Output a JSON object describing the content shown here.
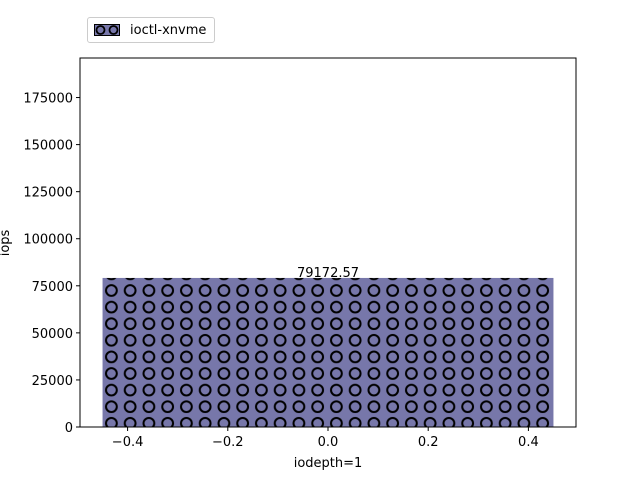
{
  "chart_data": {
    "type": "bar",
    "x": [
      0.0
    ],
    "values": [
      79172.57
    ],
    "value_labels": [
      "79172.57"
    ],
    "bar_width": 0.9,
    "series": [
      {
        "name": "ioctl-xnvme",
        "values": [
          79172.57
        ]
      }
    ],
    "xlabel": "iodepth=1",
    "ylabel": "iops",
    "xlim": [
      -0.495,
      0.495
    ],
    "ylim": [
      0,
      196000
    ],
    "xticks": [
      -0.4,
      -0.2,
      0.0,
      0.2,
      0.4
    ],
    "xtick_labels": [
      "−0.4",
      "−0.2",
      "0.0",
      "0.2",
      "0.4"
    ],
    "yticks": [
      0,
      25000,
      50000,
      75000,
      100000,
      125000,
      150000,
      175000
    ],
    "ytick_labels": [
      "0",
      "25000",
      "50000",
      "75000",
      "100000",
      "125000",
      "150000",
      "175000"
    ],
    "grid": false,
    "legend_position": "top-left outside",
    "bar_color": "#7777aa",
    "hatch": "circles"
  }
}
